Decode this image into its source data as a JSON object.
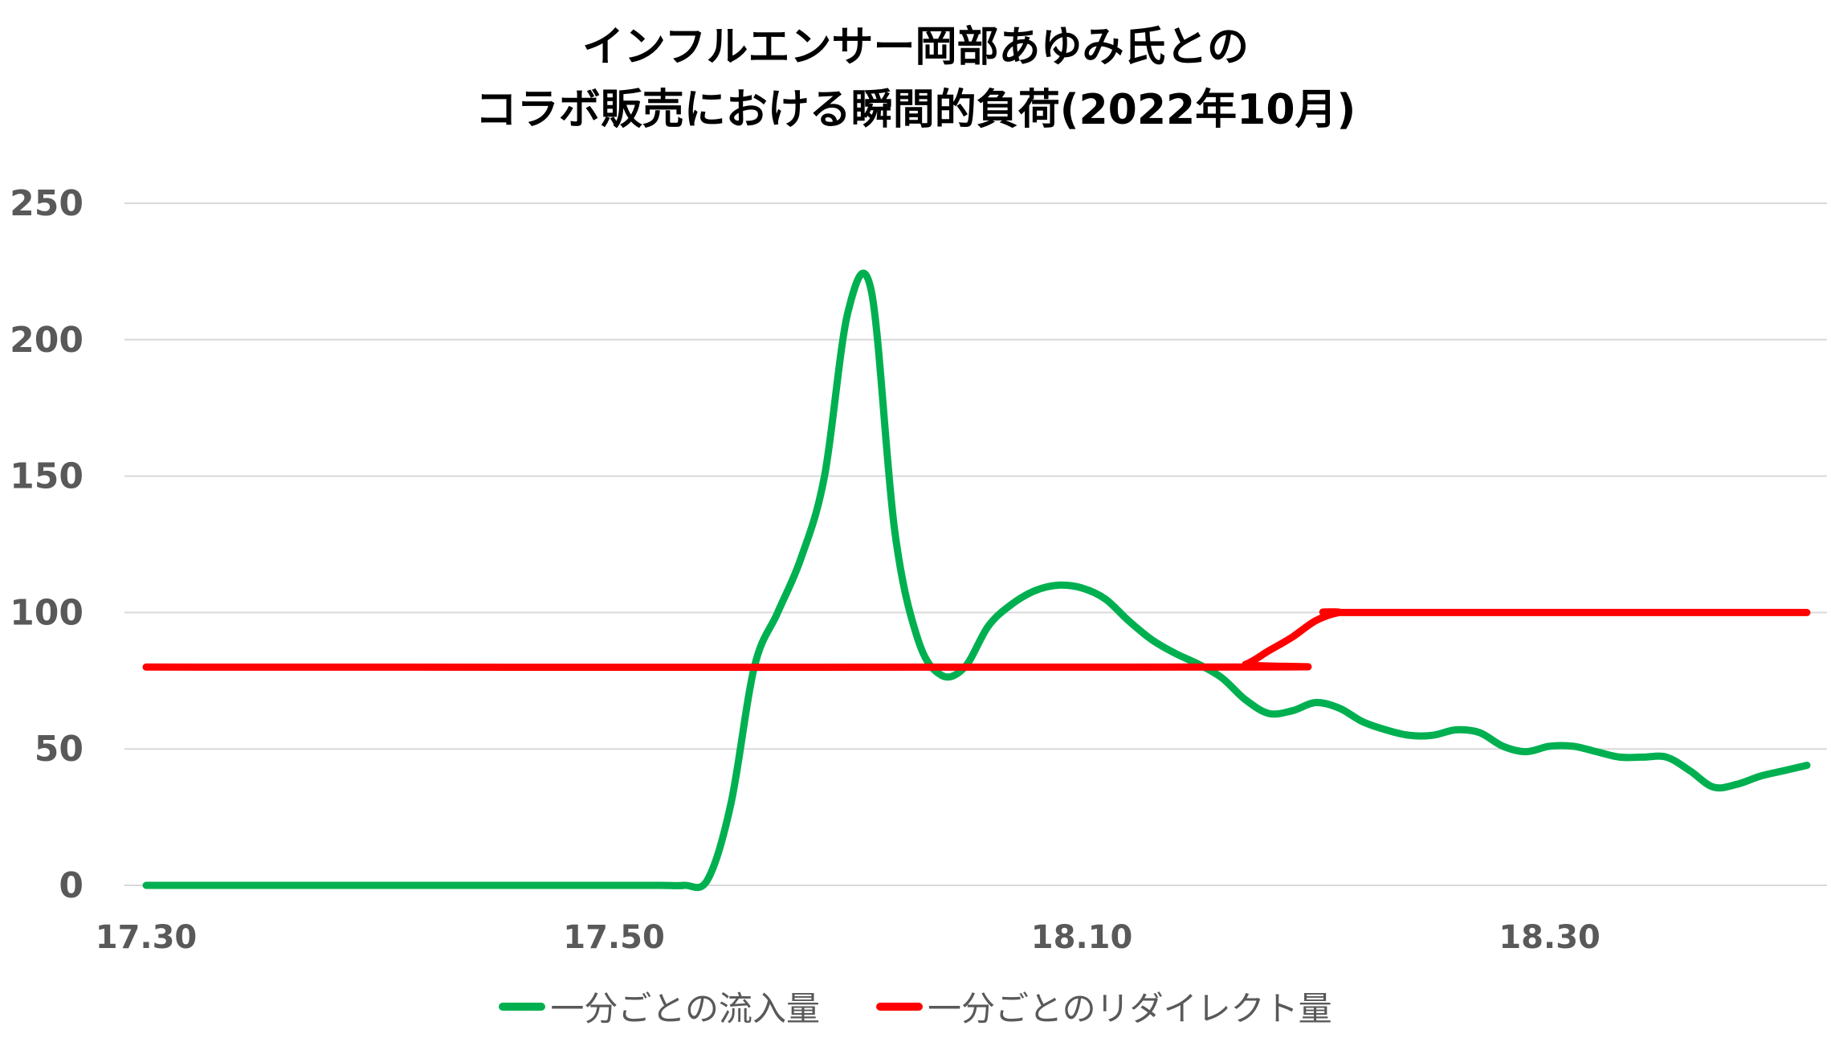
{
  "chart_data": {
    "type": "line",
    "title_lines": [
      "インフルエンサー岡部あゆみ氏との",
      "コラボ販売における瞬間的負荷(2022年10月)"
    ],
    "xlabel": "",
    "ylabel": "",
    "ylim": [
      0,
      250
    ],
    "yticks": [
      "0",
      "50",
      "100",
      "150",
      "200",
      "250"
    ],
    "x_domain_minutes": [
      0,
      71
    ],
    "x_ticks": [
      {
        "label": "17.30",
        "minute": 0
      },
      {
        "label": "17.50",
        "minute": 20
      },
      {
        "label": "18.10",
        "minute": 40
      },
      {
        "label": "18.30",
        "minute": 60
      }
    ],
    "grid": true,
    "legend_position": "bottom",
    "series": [
      {
        "name": "一分ごとの流入量",
        "color": "#00b050",
        "x": [
          0,
          5,
          10,
          15,
          20,
          22,
          23,
          24,
          25,
          26,
          27,
          28,
          29,
          30,
          31,
          32,
          33,
          34,
          35,
          36,
          37,
          38,
          39,
          40,
          41,
          42,
          43,
          44,
          45,
          46,
          47,
          48,
          49,
          50,
          51,
          52,
          53,
          54,
          55,
          56,
          57,
          58,
          59,
          60,
          61,
          62,
          63,
          64,
          65,
          66,
          67,
          68,
          69,
          70,
          71
        ],
        "values": [
          0,
          0,
          0,
          0,
          0,
          0,
          0,
          2,
          30,
          80,
          100,
          120,
          150,
          210,
          218,
          130,
          90,
          77,
          80,
          95,
          103,
          108,
          110,
          109,
          105,
          97,
          90,
          85,
          81,
          76,
          68,
          63,
          64,
          67,
          65,
          60,
          57,
          55,
          55,
          57,
          56,
          51,
          49,
          51,
          51,
          49,
          47,
          47,
          47,
          42,
          36,
          37,
          40,
          42,
          44
        ]
      },
      {
        "name": "一分ごとのリダイレクト量",
        "color": "#ff0000",
        "x": [
          0,
          46,
          47,
          48,
          49,
          50,
          51,
          52,
          71
        ],
        "values": [
          80,
          80,
          81,
          86,
          91,
          97,
          100,
          100,
          100
        ]
      }
    ]
  }
}
